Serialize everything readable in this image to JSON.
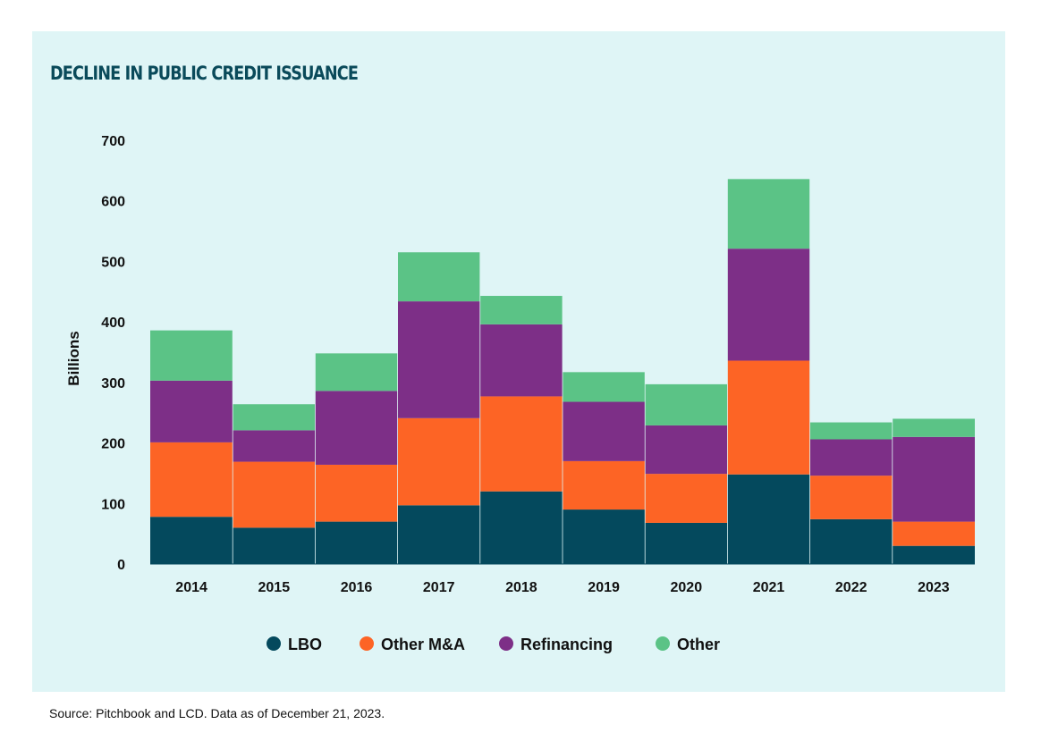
{
  "title": "DECLINE IN PUBLIC CREDIT ISSUANCE",
  "source": "Source: Pitchbook and LCD. Data as of December 21, 2023.",
  "colors": {
    "LBO": "#04495d",
    "Other M&A": "#fd6425",
    "Refinancing": "#7d2f87",
    "Other": "#5bc386",
    "panel": "#dff5f6"
  },
  "chart_data": {
    "type": "bar",
    "stacked": true,
    "title": "DECLINE IN PUBLIC CREDIT ISSUANCE",
    "ylabel": "Billions",
    "xlabel": "",
    "ylim": [
      0,
      700
    ],
    "yticks": [
      0,
      100,
      200,
      300,
      400,
      500,
      600,
      700
    ],
    "grid": false,
    "legend": "bottom",
    "categories": [
      "2014",
      "2015",
      "2016",
      "2017",
      "2018",
      "2019",
      "2020",
      "2021",
      "2022",
      "2023"
    ],
    "series": [
      {
        "name": "LBO",
        "values": [
          78,
          60,
          70,
          97,
          120,
          90,
          68,
          148,
          74,
          30
        ]
      },
      {
        "name": "Other M&A",
        "values": [
          123,
          109,
          94,
          144,
          157,
          80,
          81,
          188,
          72,
          40
        ]
      },
      {
        "name": "Refinancing",
        "values": [
          102,
          52,
          122,
          193,
          119,
          98,
          80,
          185,
          60,
          140
        ]
      },
      {
        "name": "Other",
        "values": [
          83,
          43,
          62,
          81,
          47,
          49,
          68,
          115,
          28,
          30
        ]
      }
    ]
  }
}
